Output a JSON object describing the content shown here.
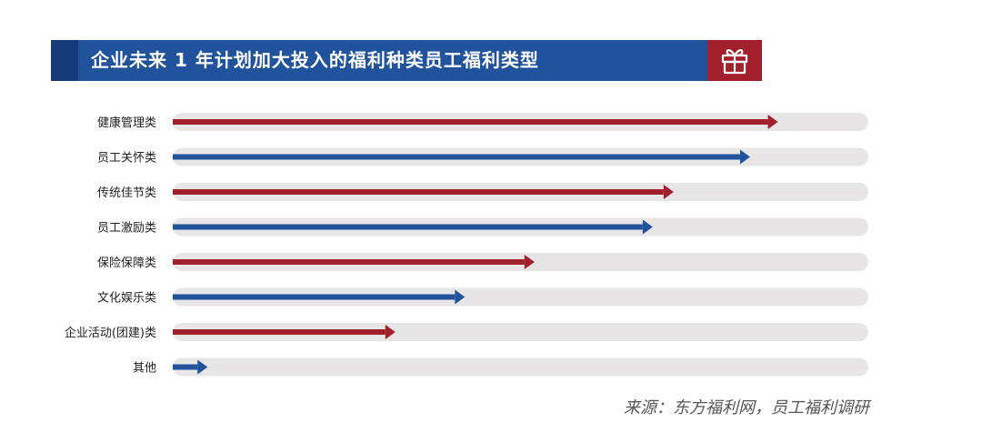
{
  "header": {
    "title": "企业未来 1 年计划加大投入的福利种类员工福利类型",
    "icon": "gift-icon"
  },
  "colors": {
    "header_blue": "#21539c",
    "header_dark": "#153a78",
    "gift_red": "#a21f2c",
    "series_red": "#a21f2c",
    "series_blue": "#21539c",
    "track": "#e7e5e6"
  },
  "chart_data": {
    "type": "bar",
    "orientation": "horizontal",
    "categories": [
      "健康管理类",
      "员工关怀类",
      "传统佳节类",
      "员工激励类",
      "保险保障类",
      "文化娱乐类",
      "企业活动(团建)类",
      "其他"
    ],
    "values": [
      87,
      83,
      72,
      69,
      52,
      42,
      32,
      5
    ],
    "xlim": [
      0,
      100
    ],
    "bar_colors": [
      "#a21f2c",
      "#21539c",
      "#a21f2c",
      "#21539c",
      "#a21f2c",
      "#21539c",
      "#a21f2c",
      "#21539c"
    ],
    "grid": false
  },
  "source": "来源：东方福利网，员工福利调研"
}
